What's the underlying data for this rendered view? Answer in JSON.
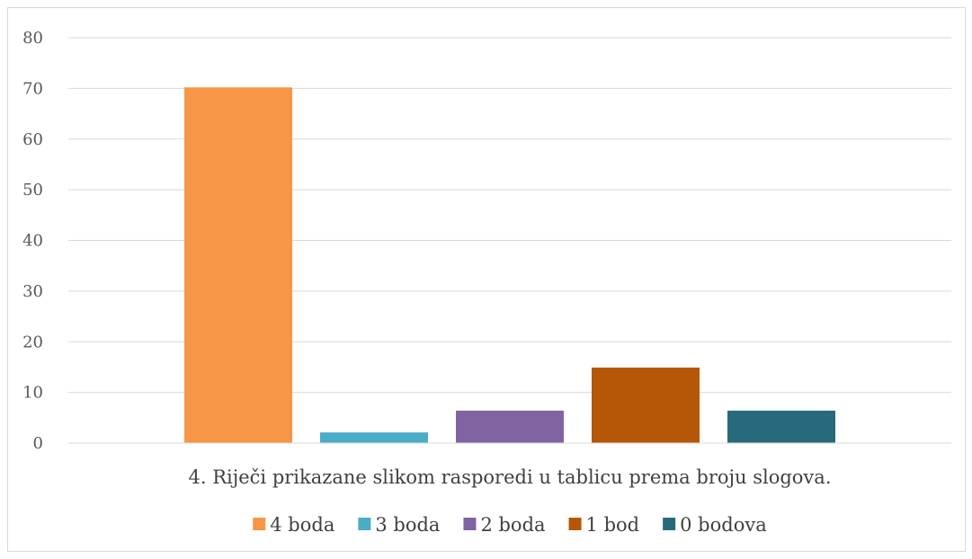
{
  "chart_data": {
    "type": "bar",
    "categories": [
      "4. Riječi prikazane slikom rasporedi u tablicu prema broju slogova."
    ],
    "series": [
      {
        "name": "4 boda",
        "values": [
          70.2
        ],
        "color": "#f79646"
      },
      {
        "name": "3 boda",
        "values": [
          2.1
        ],
        "color": "#4bacc6"
      },
      {
        "name": "2 boda",
        "values": [
          6.4
        ],
        "color": "#8064a2"
      },
      {
        "name": "1 bod",
        "values": [
          14.9
        ],
        "color": "#b65708"
      },
      {
        "name": "0 bodova",
        "values": [
          6.4
        ],
        "color": "#276a7c"
      }
    ],
    "ylim": [
      0,
      80
    ],
    "yticks": [
      0,
      10,
      20,
      30,
      40,
      50,
      60,
      70,
      80
    ],
    "grid": true,
    "legend": "bottom"
  }
}
